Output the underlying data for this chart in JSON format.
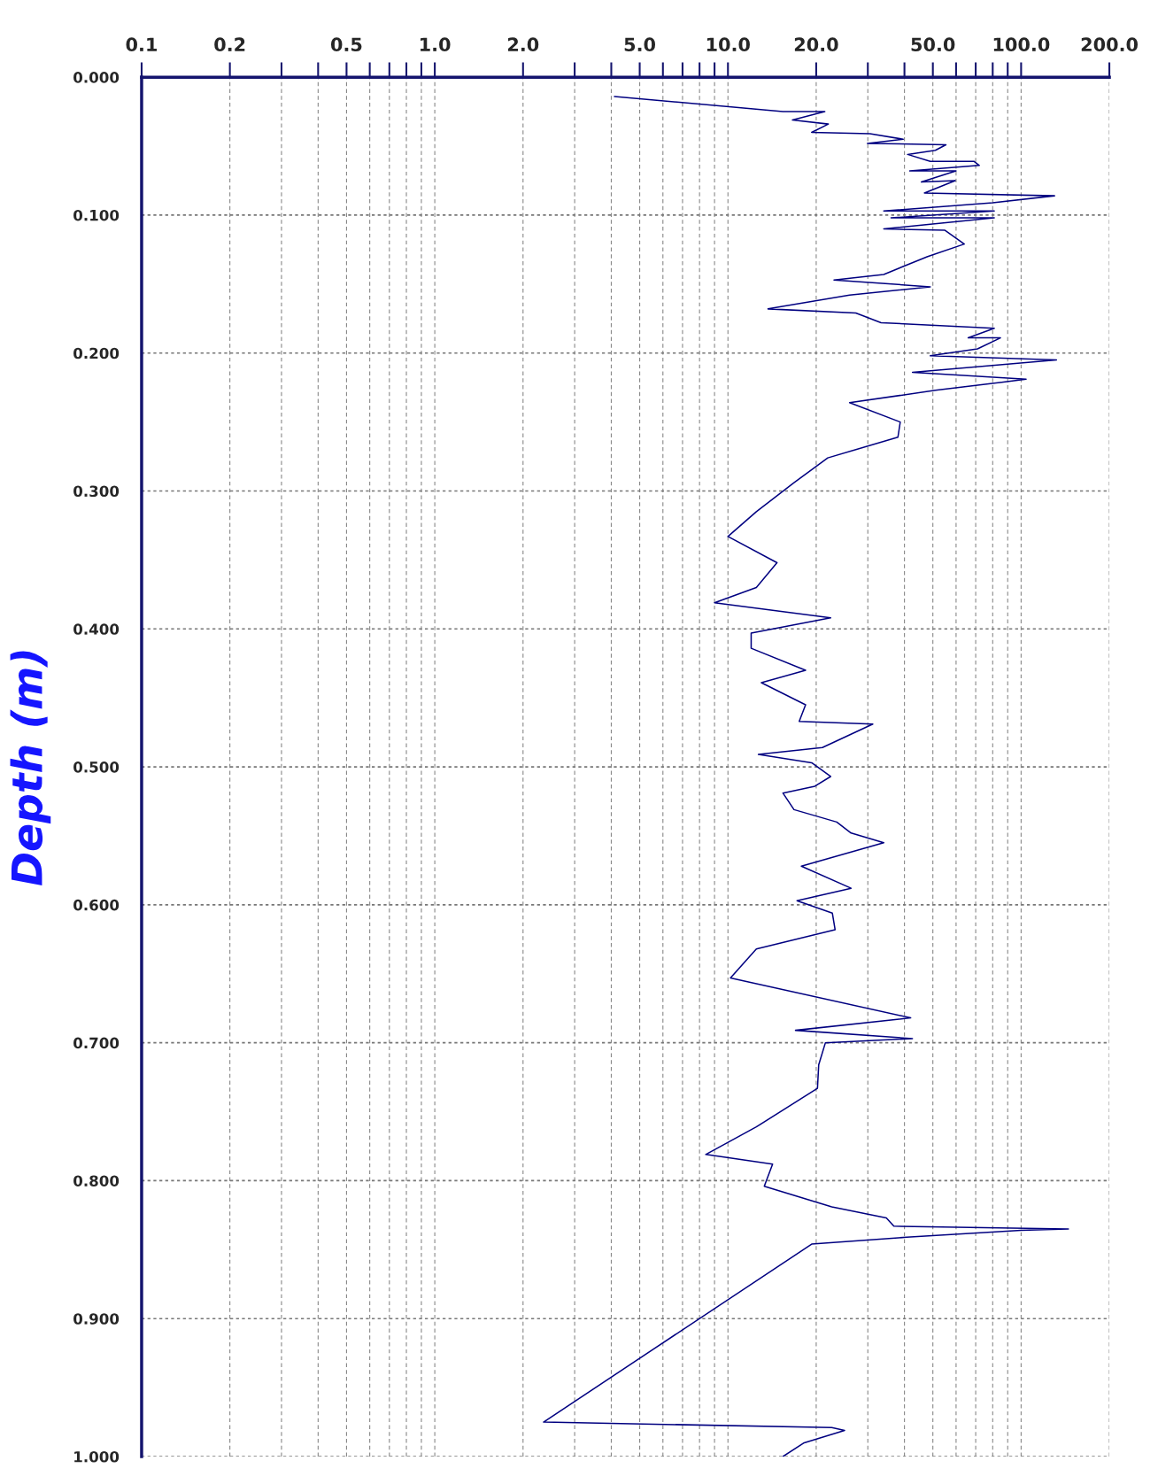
{
  "chart_data": {
    "type": "line",
    "ylabel": "Depth (m)",
    "log": "x",
    "grid": true,
    "line_style": "solid",
    "xlim": [
      0.1,
      200
    ],
    "xticks": [
      0.1,
      0.2,
      {
        "value": 0.3,
        "label": null
      },
      {
        "value": 0.4,
        "label": null
      },
      0.5,
      {
        "value": 0.6,
        "label": null
      },
      {
        "value": 0.7,
        "label": null
      },
      {
        "value": 0.8,
        "label": null
      },
      {
        "value": 0.9,
        "label": null
      },
      {
        "value": 1,
        "label": "1.0"
      },
      {
        "value": 2,
        "label": "2.0"
      },
      {
        "value": 3,
        "label": null
      },
      {
        "value": 4,
        "label": null
      },
      {
        "value": 5,
        "label": "5.0"
      },
      {
        "value": 6,
        "label": null
      },
      {
        "value": 7,
        "label": null
      },
      {
        "value": 8,
        "label": null
      },
      {
        "value": 9,
        "label": null
      },
      {
        "value": 10,
        "label": "10.0"
      },
      {
        "value": 20,
        "label": "20.0"
      },
      {
        "value": 30,
        "label": null
      },
      {
        "value": 40,
        "label": null
      },
      {
        "value": 50,
        "label": "50.0"
      },
      {
        "value": 60,
        "label": null
      },
      {
        "value": 70,
        "label": null
      },
      {
        "value": 80,
        "label": null
      },
      {
        "value": 90,
        "label": null
      },
      {
        "value": 100,
        "label": "100.0"
      },
      {
        "value": 200,
        "label": "200.0"
      }
    ],
    "ylim": [
      1.0,
      0.0
    ],
    "yticks": [
      {
        "value": 0,
        "label": "0.000"
      },
      {
        "value": 0.1,
        "label": "0.100"
      },
      {
        "value": 0.2,
        "label": "0.200"
      },
      {
        "value": 0.3,
        "label": "0.300"
      },
      {
        "value": 0.4,
        "label": "0.400"
      },
      {
        "value": 0.5,
        "label": "0.500"
      },
      {
        "value": 0.6,
        "label": "0.600"
      },
      {
        "value": 0.7,
        "label": "0.700"
      },
      {
        "value": 0.8,
        "label": "0.800"
      },
      {
        "value": 0.9,
        "label": "0.900"
      },
      {
        "value": 1.0,
        "label": "1.000"
      }
    ],
    "series": [
      {
        "color": "#000080",
        "x": [
          4.1,
          15.4,
          21.4,
          16.6,
          22,
          19.3,
          30.5,
          39.6,
          29.9,
          55.4,
          51,
          41,
          49,
          69,
          72,
          41.7,
          60,
          45.7,
          59.6,
          46.8,
          130,
          80,
          34,
          81,
          36,
          81,
          34,
          55,
          64,
          48,
          34,
          23,
          49,
          26,
          13.7,
          27.3,
          33.3,
          81,
          66,
          85,
          71,
          49,
          132,
          42.6,
          104,
          87,
          51,
          26,
          38.7,
          38,
          21.9,
          16.8,
          12.5,
          10,
          14.7,
          12.5,
          9.0,
          22.4,
          12.0,
          12.0,
          18.4,
          13.0,
          18.4,
          17.5,
          31.2,
          21,
          12.7,
          19.3,
          22.4,
          19.8,
          15.4,
          16.8,
          23.5,
          26.3,
          34,
          17.8,
          26.3,
          17.2,
          22.7,
          23.2,
          12.5,
          10.2,
          42,
          17,
          42.6,
          21.5,
          20.4,
          20.2,
          12.5,
          8.4,
          14.2,
          13.3,
          22.6,
          34.7,
          36.8,
          145,
          100,
          40.7,
          19.3,
          2.35,
          22.6,
          25,
          18.2,
          15.4
        ],
        "values": [
          0.014,
          0.025,
          0.025,
          0.031,
          0.034,
          0.04,
          0.041,
          0.045,
          0.048,
          0.049,
          0.053,
          0.056,
          0.061,
          0.061,
          0.064,
          0.068,
          0.068,
          0.076,
          0.075,
          0.084,
          0.086,
          0.091,
          0.097,
          0.097,
          0.102,
          0.102,
          0.11,
          0.111,
          0.121,
          0.13,
          0.143,
          0.147,
          0.152,
          0.158,
          0.168,
          0.171,
          0.178,
          0.182,
          0.189,
          0.189,
          0.197,
          0.202,
          0.205,
          0.214,
          0.219,
          0.221,
          0.227,
          0.236,
          0.25,
          0.261,
          0.276,
          0.294,
          0.315,
          0.333,
          0.352,
          0.37,
          0.381,
          0.392,
          0.403,
          0.414,
          0.43,
          0.439,
          0.455,
          0.467,
          0.469,
          0.486,
          0.491,
          0.497,
          0.507,
          0.514,
          0.519,
          0.531,
          0.54,
          0.548,
          0.555,
          0.572,
          0.588,
          0.597,
          0.606,
          0.618,
          0.632,
          0.653,
          0.682,
          0.691,
          0.697,
          0.7,
          0.716,
          0.733,
          0.761,
          0.781,
          0.788,
          0.804,
          0.819,
          0.827,
          0.833,
          0.835,
          0.836,
          0.841,
          0.846,
          0.975,
          0.979,
          0.981,
          0.99,
          1.0
        ]
      }
    ]
  }
}
